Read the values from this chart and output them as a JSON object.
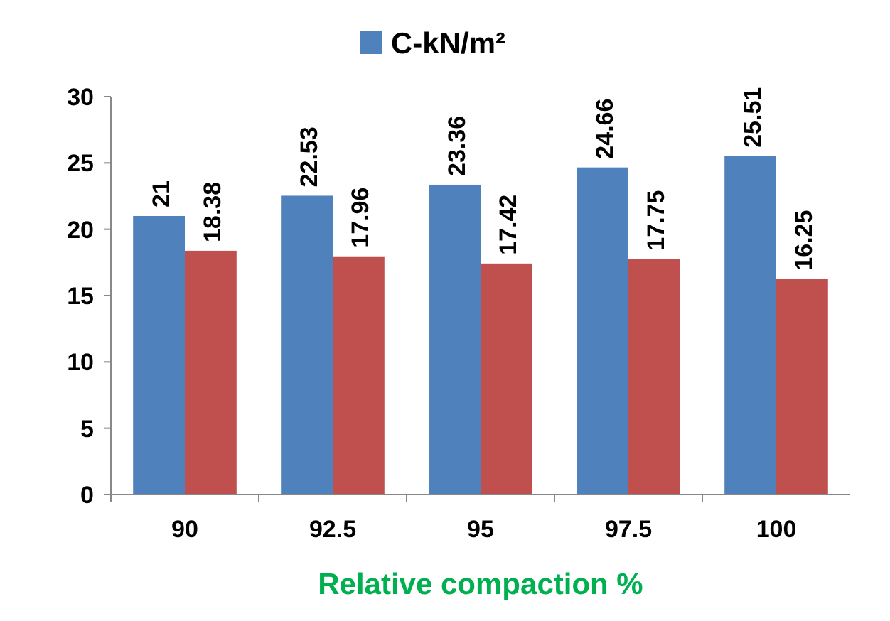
{
  "chart_data": {
    "type": "bar",
    "xlabel": "Relative compaction %",
    "categories": [
      "90",
      "92.5",
      "95",
      "97.5",
      "100"
    ],
    "series": [
      {
        "name": "C-kN/m²",
        "color": "#4f81bd",
        "values": [
          21,
          22.53,
          23.36,
          24.66,
          25.51
        ]
      },
      {
        "color": "#c0504d",
        "values": [
          18.38,
          17.96,
          17.42,
          17.75,
          16.25
        ]
      }
    ],
    "ylim": [
      0,
      30
    ],
    "yticks": [
      0,
      5,
      10,
      15,
      20,
      25,
      30
    ],
    "data_labels": true,
    "legend": "top",
    "grid": false
  }
}
